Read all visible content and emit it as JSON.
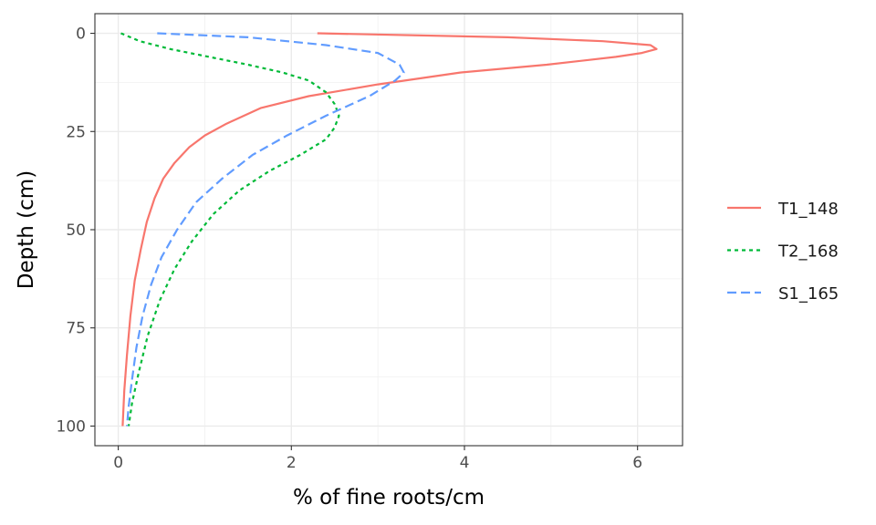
{
  "chart_data": {
    "type": "line",
    "title": "",
    "xlabel": "% of fine roots/cm",
    "ylabel": "Depth (cm)",
    "xlim": [
      -0.27,
      6.52
    ],
    "ylim": [
      105,
      -5
    ],
    "y_reversed": true,
    "grid": true,
    "legend_position": "right",
    "x_ticks": [
      0,
      2,
      4,
      6
    ],
    "x_tick_labels": [
      "0",
      "2",
      "4",
      "6"
    ],
    "y_ticks": [
      0,
      25,
      50,
      75,
      100
    ],
    "y_tick_labels": [
      "0",
      "25",
      "50",
      "75",
      "100"
    ],
    "series": [
      {
        "name": "T1_148",
        "color": "#F8766D",
        "dash": "solid",
        "points": [
          [
            2.3,
            0
          ],
          [
            4.5,
            1
          ],
          [
            5.6,
            2
          ],
          [
            6.15,
            3
          ],
          [
            6.22,
            4
          ],
          [
            6.05,
            5
          ],
          [
            5.75,
            6
          ],
          [
            4.95,
            8
          ],
          [
            3.95,
            10
          ],
          [
            3.0,
            13
          ],
          [
            2.2,
            16
          ],
          [
            1.65,
            19
          ],
          [
            1.25,
            23
          ],
          [
            1.0,
            26
          ],
          [
            0.82,
            29
          ],
          [
            0.65,
            33
          ],
          [
            0.52,
            37
          ],
          [
            0.42,
            42
          ],
          [
            0.33,
            48
          ],
          [
            0.26,
            55
          ],
          [
            0.19,
            63
          ],
          [
            0.14,
            72
          ],
          [
            0.1,
            82
          ],
          [
            0.07,
            91
          ],
          [
            0.05,
            100
          ]
        ]
      },
      {
        "name": "T2_168",
        "color": "#00BA38",
        "dash": "short-dash",
        "points": [
          [
            0.03,
            0
          ],
          [
            0.25,
            2
          ],
          [
            0.6,
            4
          ],
          [
            1.05,
            6
          ],
          [
            1.5,
            8
          ],
          [
            1.9,
            10
          ],
          [
            2.2,
            12
          ],
          [
            2.4,
            15
          ],
          [
            2.5,
            18
          ],
          [
            2.55,
            21
          ],
          [
            2.5,
            24
          ],
          [
            2.4,
            27
          ],
          [
            2.1,
            31
          ],
          [
            1.75,
            35
          ],
          [
            1.4,
            40
          ],
          [
            1.1,
            46
          ],
          [
            0.85,
            53
          ],
          [
            0.65,
            60
          ],
          [
            0.48,
            68
          ],
          [
            0.34,
            77
          ],
          [
            0.24,
            86
          ],
          [
            0.16,
            94
          ],
          [
            0.12,
            100
          ]
        ]
      },
      {
        "name": "S1_165",
        "color": "#619CFF",
        "dash": "long-dash",
        "points": [
          [
            0.45,
            0
          ],
          [
            1.5,
            1
          ],
          [
            2.4,
            3
          ],
          [
            3.0,
            5
          ],
          [
            3.25,
            8
          ],
          [
            3.3,
            10
          ],
          [
            3.2,
            12
          ],
          [
            2.9,
            16
          ],
          [
            2.4,
            21
          ],
          [
            1.95,
            26
          ],
          [
            1.55,
            31
          ],
          [
            1.2,
            37
          ],
          [
            0.9,
            43
          ],
          [
            0.68,
            50
          ],
          [
            0.5,
            57
          ],
          [
            0.38,
            64
          ],
          [
            0.28,
            72
          ],
          [
            0.21,
            80
          ],
          [
            0.16,
            88
          ],
          [
            0.12,
            95
          ],
          [
            0.1,
            100
          ]
        ]
      }
    ]
  }
}
